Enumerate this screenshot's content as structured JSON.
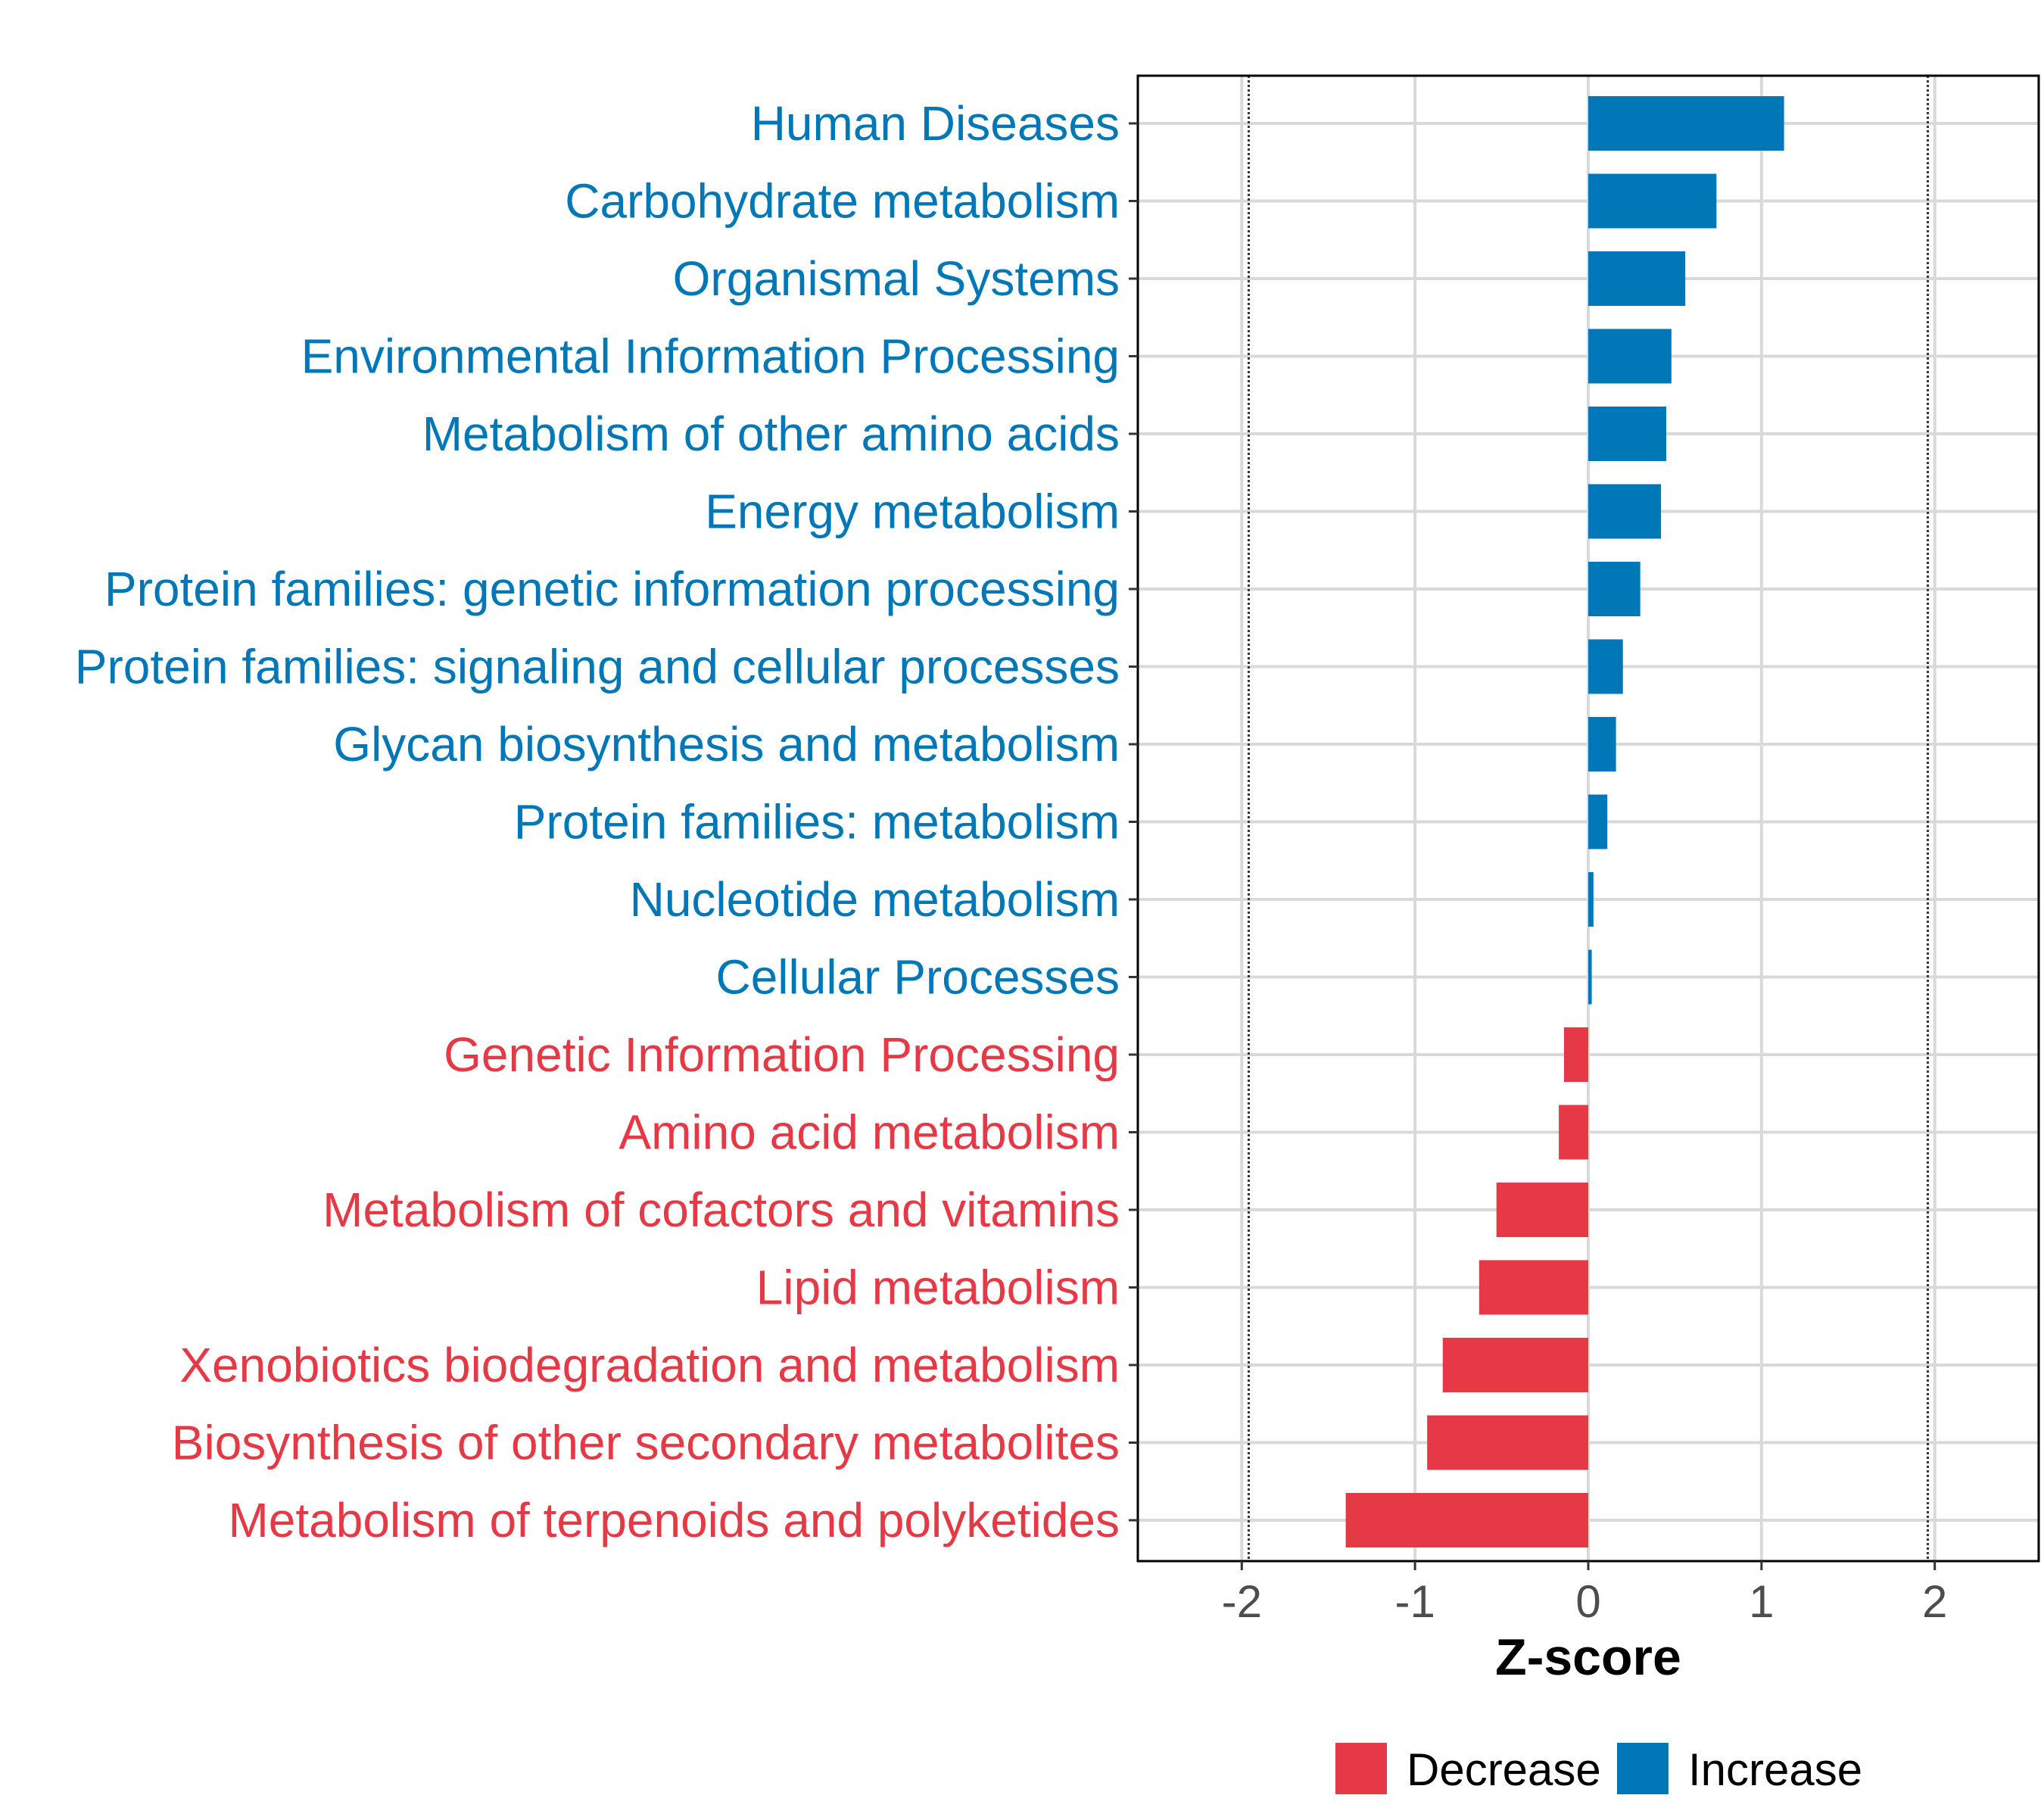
{
  "chart_data": {
    "type": "bar",
    "orientation": "horizontal",
    "xlabel": "Z-score",
    "xlim": [
      -2.6,
      2.6
    ],
    "xticks": [
      -2,
      -1,
      0,
      1,
      2
    ],
    "xtick_labels": [
      "-2",
      "-1",
      "0",
      "1",
      "2"
    ],
    "reference_lines": [
      -1.96,
      1.96
    ],
    "grid": true,
    "legend_position": "bottom",
    "legend": [
      {
        "name": "Decrease",
        "color": "#e63946"
      },
      {
        "name": "Increase",
        "color": "#0077b6"
      }
    ],
    "categories": [
      "Human Diseases",
      "Carbohydrate metabolism",
      "Organismal Systems",
      "Environmental Information Processing",
      "Metabolism of other amino acids",
      "Energy metabolism",
      "Protein families: genetic information processing",
      "Protein families: signaling and cellular processes",
      "Glycan biosynthesis and metabolism",
      "Protein families: metabolism",
      "Nucleotide metabolism",
      "Cellular Processes",
      "Genetic Information Processing",
      "Amino acid metabolism",
      "Metabolism of cofactors and vitamins",
      "Lipid metabolism",
      "Xenobiotics biodegradation and metabolism",
      "Biosynthesis of other secondary metabolites",
      "Metabolism of terpenoids and polyketides"
    ],
    "values": [
      1.13,
      0.74,
      0.56,
      0.48,
      0.45,
      0.42,
      0.3,
      0.2,
      0.16,
      0.11,
      0.03,
      0.02,
      -0.14,
      -0.17,
      -0.53,
      -0.63,
      -0.84,
      -0.93,
      -1.4
    ]
  }
}
